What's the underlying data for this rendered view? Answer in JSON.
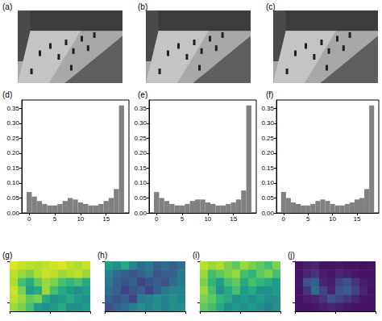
{
  "chart_data": [
    {
      "type": "image",
      "title": "(a)"
    },
    {
      "type": "image",
      "title": "(b)"
    },
    {
      "type": "image",
      "title": "(c)"
    },
    {
      "type": "histogram",
      "title": "(d)",
      "color": "#808080",
      "grid": false,
      "bins": [
        -0.5,
        0.5,
        1.5,
        2.5,
        3.5,
        4.5,
        5.5,
        6.5,
        7.5,
        8.5,
        9.5,
        10.5,
        11.5,
        12.5,
        13.5,
        14.5,
        15.5,
        16.5,
        17.5,
        18.5
      ],
      "values": [
        0.07,
        0.055,
        0.04,
        0.03,
        0.025,
        0.025,
        0.03,
        0.04,
        0.05,
        0.045,
        0.035,
        0.03,
        0.025,
        0.025,
        0.03,
        0.04,
        0.05,
        0.08,
        0.36
      ],
      "xlim": [
        -1.45,
        19.45
      ],
      "xticks": [
        0,
        5,
        10,
        15
      ],
      "ylim": [
        0,
        0.378
      ],
      "yticks": [
        {
          "value": 0,
          "label": "0.00"
        },
        0.05,
        {
          "value": 0.1,
          "label": "0.10"
        },
        0.15,
        {
          "value": 0.2,
          "label": "0.20"
        },
        0.25,
        {
          "value": 0.3,
          "label": "0.30"
        },
        0.35
      ]
    },
    {
      "type": "histogram",
      "title": "(e)",
      "color": "#808080",
      "grid": false,
      "bins": [
        -0.5,
        0.5,
        1.5,
        2.5,
        3.5,
        4.5,
        5.5,
        6.5,
        7.5,
        8.5,
        9.5,
        10.5,
        11.5,
        12.5,
        13.5,
        14.5,
        15.5,
        16.5,
        17.5,
        18.5
      ],
      "values": [
        0.07,
        0.05,
        0.04,
        0.03,
        0.025,
        0.025,
        0.03,
        0.04,
        0.045,
        0.045,
        0.035,
        0.03,
        0.025,
        0.025,
        0.03,
        0.035,
        0.045,
        0.075,
        0.36
      ],
      "xlim": [
        -1.45,
        19.45
      ],
      "xticks": [
        0,
        5,
        10,
        15
      ],
      "ylim": [
        0,
        0.378
      ],
      "yticks": [
        {
          "value": 0,
          "label": "0.00"
        },
        0.05,
        {
          "value": 0.1,
          "label": "0.10"
        },
        0.15,
        {
          "value": 0.2,
          "label": "0.20"
        },
        0.25,
        {
          "value": 0.3,
          "label": "0.30"
        },
        0.35
      ]
    },
    {
      "type": "histogram",
      "title": "(f)",
      "color": "#808080",
      "grid": false,
      "bins": [
        -0.5,
        0.5,
        1.5,
        2.5,
        3.5,
        4.5,
        5.5,
        6.5,
        7.5,
        8.5,
        9.5,
        10.5,
        11.5,
        12.5,
        13.5,
        14.5,
        15.5,
        16.5,
        17.5,
        18.5
      ],
      "values": [
        0.07,
        0.05,
        0.035,
        0.03,
        0.025,
        0.025,
        0.03,
        0.04,
        0.045,
        0.04,
        0.03,
        0.025,
        0.025,
        0.03,
        0.035,
        0.045,
        0.05,
        0.08,
        0.36
      ],
      "xlim": [
        -1.45,
        19.45
      ],
      "xticks": [
        0,
        5,
        10,
        15
      ],
      "ylim": [
        0,
        0.378
      ],
      "yticks": [
        {
          "value": 0,
          "label": "0.00"
        },
        0.05,
        {
          "value": 0.1,
          "label": "0.10"
        },
        0.15,
        {
          "value": 0.2,
          "label": "0.20"
        },
        0.25,
        {
          "value": 0.3,
          "label": "0.30"
        },
        0.35
      ]
    },
    {
      "type": "heatmap",
      "title": "(g)",
      "tick_labels": false,
      "xlim": [
        0,
        10
      ],
      "xticks": [
        0,
        5,
        10
      ],
      "ylim": [
        0,
        6
      ],
      "yticks": [
        0,
        5
      ],
      "zlim": [
        0,
        1
      ],
      "cells": [
        [
          0.95,
          0.92,
          0.9,
          0.88,
          0.9,
          0.93,
          0.95,
          0.9,
          0.88,
          0.92
        ],
        [
          0.9,
          0.85,
          0.8,
          0.88,
          0.92,
          0.9,
          0.85,
          0.88,
          0.9,
          0.85
        ],
        [
          0.88,
          0.7,
          0.6,
          0.75,
          0.85,
          0.8,
          0.7,
          0.65,
          0.7,
          0.6
        ],
        [
          0.92,
          0.8,
          0.55,
          0.6,
          0.85,
          0.7,
          0.6,
          0.55,
          0.5,
          0.55
        ],
        [
          0.9,
          0.85,
          0.75,
          0.8,
          0.6,
          0.5,
          0.55,
          0.6,
          0.55,
          0.5
        ],
        [
          0.85,
          0.8,
          0.7,
          0.55,
          0.5,
          0.55,
          0.6,
          0.5,
          0.5,
          0.55
        ]
      ]
    },
    {
      "type": "heatmap",
      "title": "(h)",
      "tick_labels": false,
      "xlim": [
        0,
        10
      ],
      "xticks": [
        0,
        5,
        10
      ],
      "ylim": [
        0,
        6
      ],
      "yticks": [
        0,
        5
      ],
      "zlim": [
        0,
        1
      ],
      "cells": [
        [
          0.55,
          0.5,
          0.6,
          0.45,
          0.35,
          0.4,
          0.3,
          0.35,
          0.3,
          0.35
        ],
        [
          0.45,
          0.35,
          0.3,
          0.25,
          0.3,
          0.35,
          0.25,
          0.3,
          0.3,
          0.4
        ],
        [
          0.4,
          0.3,
          0.25,
          0.3,
          0.2,
          0.25,
          0.3,
          0.25,
          0.35,
          0.4
        ],
        [
          0.35,
          0.3,
          0.2,
          0.25,
          0.3,
          0.2,
          0.3,
          0.4,
          0.45,
          0.45
        ],
        [
          0.3,
          0.25,
          0.3,
          0.2,
          0.4,
          0.45,
          0.5,
          0.45,
          0.5,
          0.45
        ],
        [
          0.25,
          0.3,
          0.35,
          0.45,
          0.5,
          0.45,
          0.5,
          0.45,
          0.5,
          0.5
        ]
      ]
    },
    {
      "type": "heatmap",
      "title": "(i)",
      "tick_labels": false,
      "xlim": [
        0,
        10
      ],
      "xticks": [
        0,
        5,
        10
      ],
      "ylim": [
        0,
        6
      ],
      "yticks": [
        0,
        5
      ],
      "zlim": [
        0,
        1
      ],
      "cells": [
        [
          0.9,
          0.85,
          0.88,
          0.8,
          0.75,
          0.85,
          0.8,
          0.75,
          0.7,
          0.8
        ],
        [
          0.85,
          0.7,
          0.75,
          0.8,
          0.85,
          0.7,
          0.65,
          0.75,
          0.8,
          0.7
        ],
        [
          0.8,
          0.65,
          0.55,
          0.7,
          0.75,
          0.6,
          0.7,
          0.65,
          0.6,
          0.55
        ],
        [
          0.85,
          0.7,
          0.5,
          0.6,
          0.7,
          0.55,
          0.6,
          0.5,
          0.5,
          0.55
        ],
        [
          0.8,
          0.75,
          0.65,
          0.6,
          0.5,
          0.55,
          0.5,
          0.55,
          0.5,
          0.5
        ],
        [
          0.75,
          0.7,
          0.6,
          0.5,
          0.55,
          0.5,
          0.55,
          0.5,
          0.45,
          0.5
        ]
      ]
    },
    {
      "type": "heatmap",
      "title": "(j)",
      "tick_labels": false,
      "xlim": [
        0,
        10
      ],
      "xticks": [
        0,
        5,
        10
      ],
      "ylim": [
        0,
        6
      ],
      "yticks": [
        0,
        5
      ],
      "zlim": [
        0,
        1
      ],
      "cells": [
        [
          0.05,
          0.08,
          0.1,
          0.05,
          0.05,
          0.06,
          0.05,
          0.05,
          0.04,
          0.05
        ],
        [
          0.05,
          0.1,
          0.15,
          0.08,
          0.06,
          0.1,
          0.08,
          0.06,
          0.05,
          0.05
        ],
        [
          0.06,
          0.25,
          0.3,
          0.1,
          0.08,
          0.2,
          0.25,
          0.15,
          0.08,
          0.06
        ],
        [
          0.05,
          0.15,
          0.35,
          0.2,
          0.1,
          0.25,
          0.3,
          0.2,
          0.1,
          0.05
        ],
        [
          0.05,
          0.08,
          0.1,
          0.15,
          0.25,
          0.2,
          0.15,
          0.1,
          0.06,
          0.05
        ],
        [
          0.05,
          0.05,
          0.06,
          0.08,
          0.1,
          0.08,
          0.06,
          0.05,
          0.05,
          0.05
        ]
      ]
    }
  ]
}
